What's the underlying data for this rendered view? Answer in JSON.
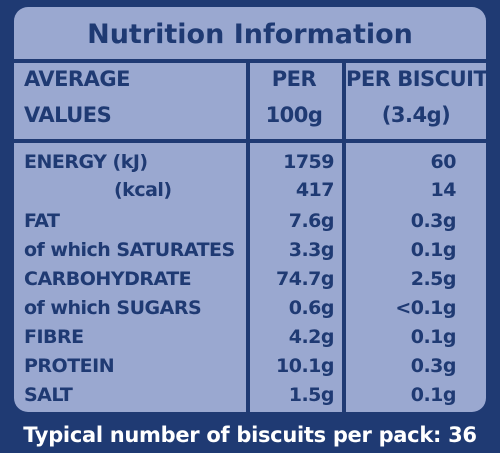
{
  "title": "Nutrition Information",
  "header": {
    "col1_line1": "AVERAGE",
    "col1_line2": "VALUES",
    "col2_line1": "PER",
    "col2_line2": "100g",
    "col3_line1": "PER BISCUIT",
    "col3_line2": "(3.4g)"
  },
  "rows": [
    {
      "label": "ENERGY (kJ)",
      "per100": "1759",
      "perBiscuit": "60"
    },
    {
      "label": "(kcal)",
      "per100": "417",
      "perBiscuit": "14"
    },
    {
      "label": "FAT",
      "per100": "7.6g",
      "perBiscuit": "0.3g"
    },
    {
      "label": "of which SATURATES",
      "per100": "3.3g",
      "perBiscuit": "0.1g"
    },
    {
      "label": "CARBOHYDRATE",
      "per100": "74.7g",
      "perBiscuit": "2.5g"
    },
    {
      "label": "of which SUGARS",
      "per100": "0.6g",
      "perBiscuit": "<0.1g"
    },
    {
      "label": "FIBRE",
      "per100": "4.2g",
      "perBiscuit": "0.1g"
    },
    {
      "label": "PROTEIN",
      "per100": "10.1g",
      "perBiscuit": "0.3g"
    },
    {
      "label": "SALT",
      "per100": "1.5g",
      "perBiscuit": "0.1g"
    }
  ],
  "footer": "Typical number of biscuits per pack: 36",
  "colors": {
    "background": "#1f3a73",
    "panel": "#9aa8d0",
    "text": "#1f3a73",
    "footer_text": "#ffffff"
  }
}
